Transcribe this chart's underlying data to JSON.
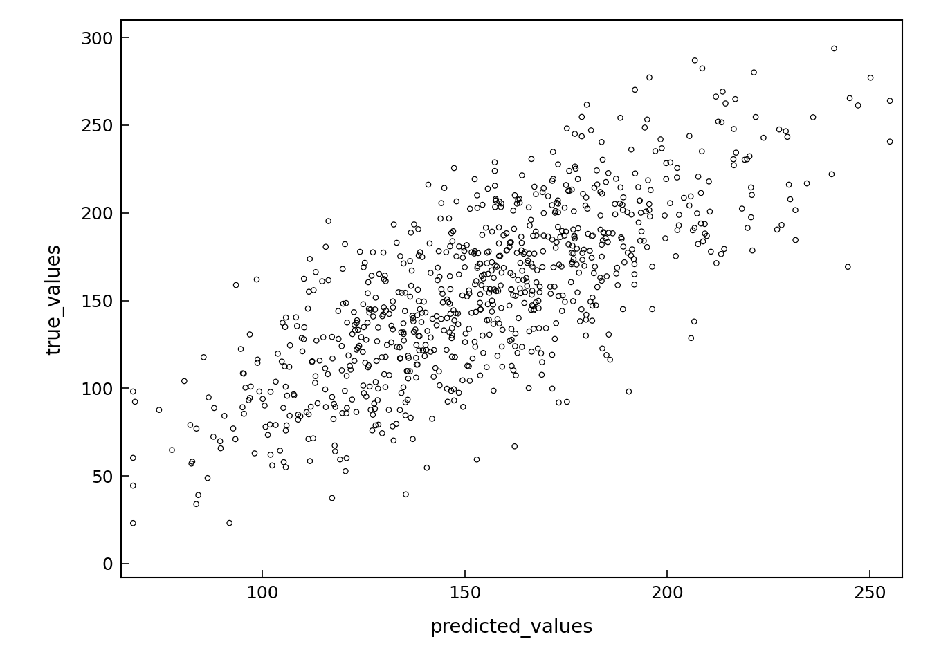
{
  "xlabel": "predicted_values",
  "ylabel": "true_values",
  "xlim": [
    65,
    258
  ],
  "ylim": [
    -8,
    310
  ],
  "xmin_spine": 65,
  "xmax_spine": 258,
  "ymin_spine": -8,
  "ymax_spine": 305,
  "xticks": [
    100,
    150,
    200,
    250
  ],
  "yticks": [
    0,
    50,
    100,
    150,
    200,
    250,
    300
  ],
  "marker": "o",
  "marker_size": 28,
  "marker_facecolor": "none",
  "marker_edgecolor": "black",
  "marker_linewidth": 0.9,
  "n_points": 800,
  "seed": 42,
  "mean_pred": 155,
  "std_pred": 35,
  "slope": 1.05,
  "intercept": -10,
  "noise_std": 32,
  "background_color": "#ffffff",
  "xlabel_fontsize": 20,
  "ylabel_fontsize": 20,
  "tick_fontsize": 18,
  "spine_linewidth": 1.5
}
